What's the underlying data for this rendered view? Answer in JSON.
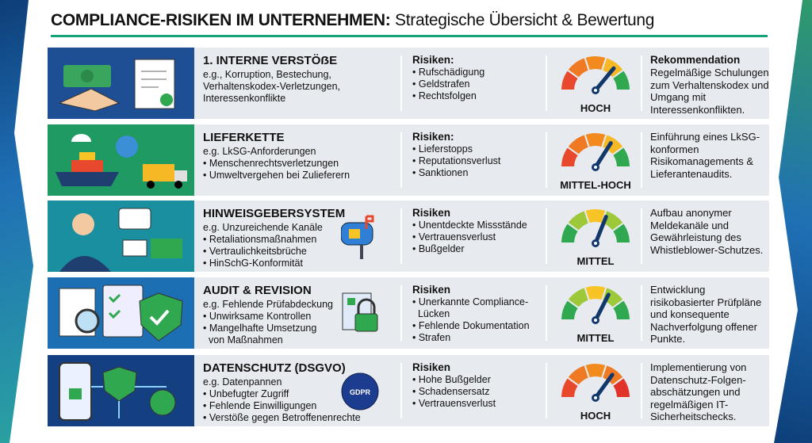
{
  "title": {
    "bold": "COMPLIANCE-RISIKEN IM UNTERNEHMEN:",
    "rest": " Strategische Übersicht & Bewertung"
  },
  "colors": {
    "accent": "#15a37b",
    "high": "#e8492c",
    "orange": "#f28a1e",
    "yellow": "#f7c325",
    "green": "#2fa84f",
    "needle": "#12386b"
  },
  "rows": [
    {
      "name": "interne-verstoesse",
      "panel_color": "#1e4f94",
      "icon": "handshake-contract-icon",
      "heading": "1. INTERNE VERSTÖẞE",
      "lines": [
        "e.g., Korruption, Bestechung,",
        "Verhaltenskodex-Verletzungen,",
        "Interessenkonflikte"
      ],
      "risk_title": "Risiken:",
      "risks": [
        "• Rufschädigung",
        "• Geldstrafen",
        "• Rechtsfolgen"
      ],
      "level": "HOCH",
      "needle": 0.72,
      "scheme": "hoch1",
      "rec_title": "Rekommendation",
      "rec": "Regelmäßige Schulungen zum Verhaltenskodex und Umgang mit Interessenkonflikten."
    },
    {
      "name": "lieferkette",
      "panel_color": "#1f9a63",
      "icon": "supply-chain-icon",
      "heading": "LIEFERKETTE",
      "lines": [
        "e.g. LkSG-Anforderungen",
        "• Menschenrechtsverletzungen",
        "• Umweltvergehen bei Zulieferern"
      ],
      "risk_title": "Risiken:",
      "risks": [
        "• Lieferstopps",
        "• Reputationsverlust",
        "• Sanktionen"
      ],
      "level": "MITTEL-HOCH",
      "needle": 0.68,
      "scheme": "hoch1",
      "rec_title": "",
      "rec": "Einführung eines LkSG-konformen Risikomanagements & Lieferantenaudits."
    },
    {
      "name": "hinweisgebersystem",
      "panel_color": "#1a8fa0",
      "icon": "whistleblower-icon",
      "extra_icon": "mailbox-lock-icon",
      "heading": "HINWEISGEBERSYSTEM",
      "lines": [
        "e.g. Unzureichende Kanäle",
        "• Retaliationsmaßnahmen",
        "• Vertraulichkeitsbrüche",
        "• HinSchG-Konformität"
      ],
      "risk_title": "Risiken",
      "risks": [
        "• Unentdeckte Missstände",
        "• Vertrauensverlust",
        "• Bußgelder"
      ],
      "level": "MITTEL",
      "needle": 0.62,
      "scheme": "mittel",
      "rec_title": "",
      "rec": "Aufbau anonymer Meldekanäle und Gewährleistung des Whistleblower-Schutzes."
    },
    {
      "name": "audit-revision",
      "panel_color": "#1c6fb2",
      "icon": "audit-checklist-icon",
      "extra_icon": "document-lock-icon",
      "heading": "AUDIT & REVISION",
      "lines": [
        "e.g. Fehlende Prüfabdeckung",
        "• Unwirksame Kontrollen",
        "• Mangelhafte Umsetzung",
        "  von Maßnahmen"
      ],
      "risk_title": "Risiken",
      "risks": [
        "• Unerkannte Compliance-",
        "  Lücken",
        "• Fehlende Dokumentation",
        "• Strafen"
      ],
      "level": "MITTEL",
      "needle": 0.65,
      "scheme": "mittel",
      "rec_title": "",
      "rec": "Entwicklung risikobasierter Prüfpläne und konsequente Nachverfolgung offener Punkte."
    },
    {
      "name": "datenschutz",
      "panel_color": "#143f80",
      "icon": "data-protection-icon",
      "extra_icon": "gdpr-badge-icon",
      "extra_text": "GDPR",
      "heading": "DATENSCHUTZ (DSGVO)",
      "lines": [
        "e.g. Datenpannen",
        "• Unbefugter Zugriff",
        "• Fehlende Einwilligungen",
        "• Verstöße gegen Betroffenenrechte"
      ],
      "risk_title": "Risiken",
      "risks": [
        "• Hohe Bußgelder",
        "• Schadensersatz",
        "• Vertrauensverlust"
      ],
      "level": "HOCH",
      "needle": 0.7,
      "scheme": "hoch2",
      "rec_title": "",
      "rec": "Implementierung von Datenschutz-Folgen-abschätzungen und regelmäßigen IT-Sicherheitschecks."
    }
  ]
}
